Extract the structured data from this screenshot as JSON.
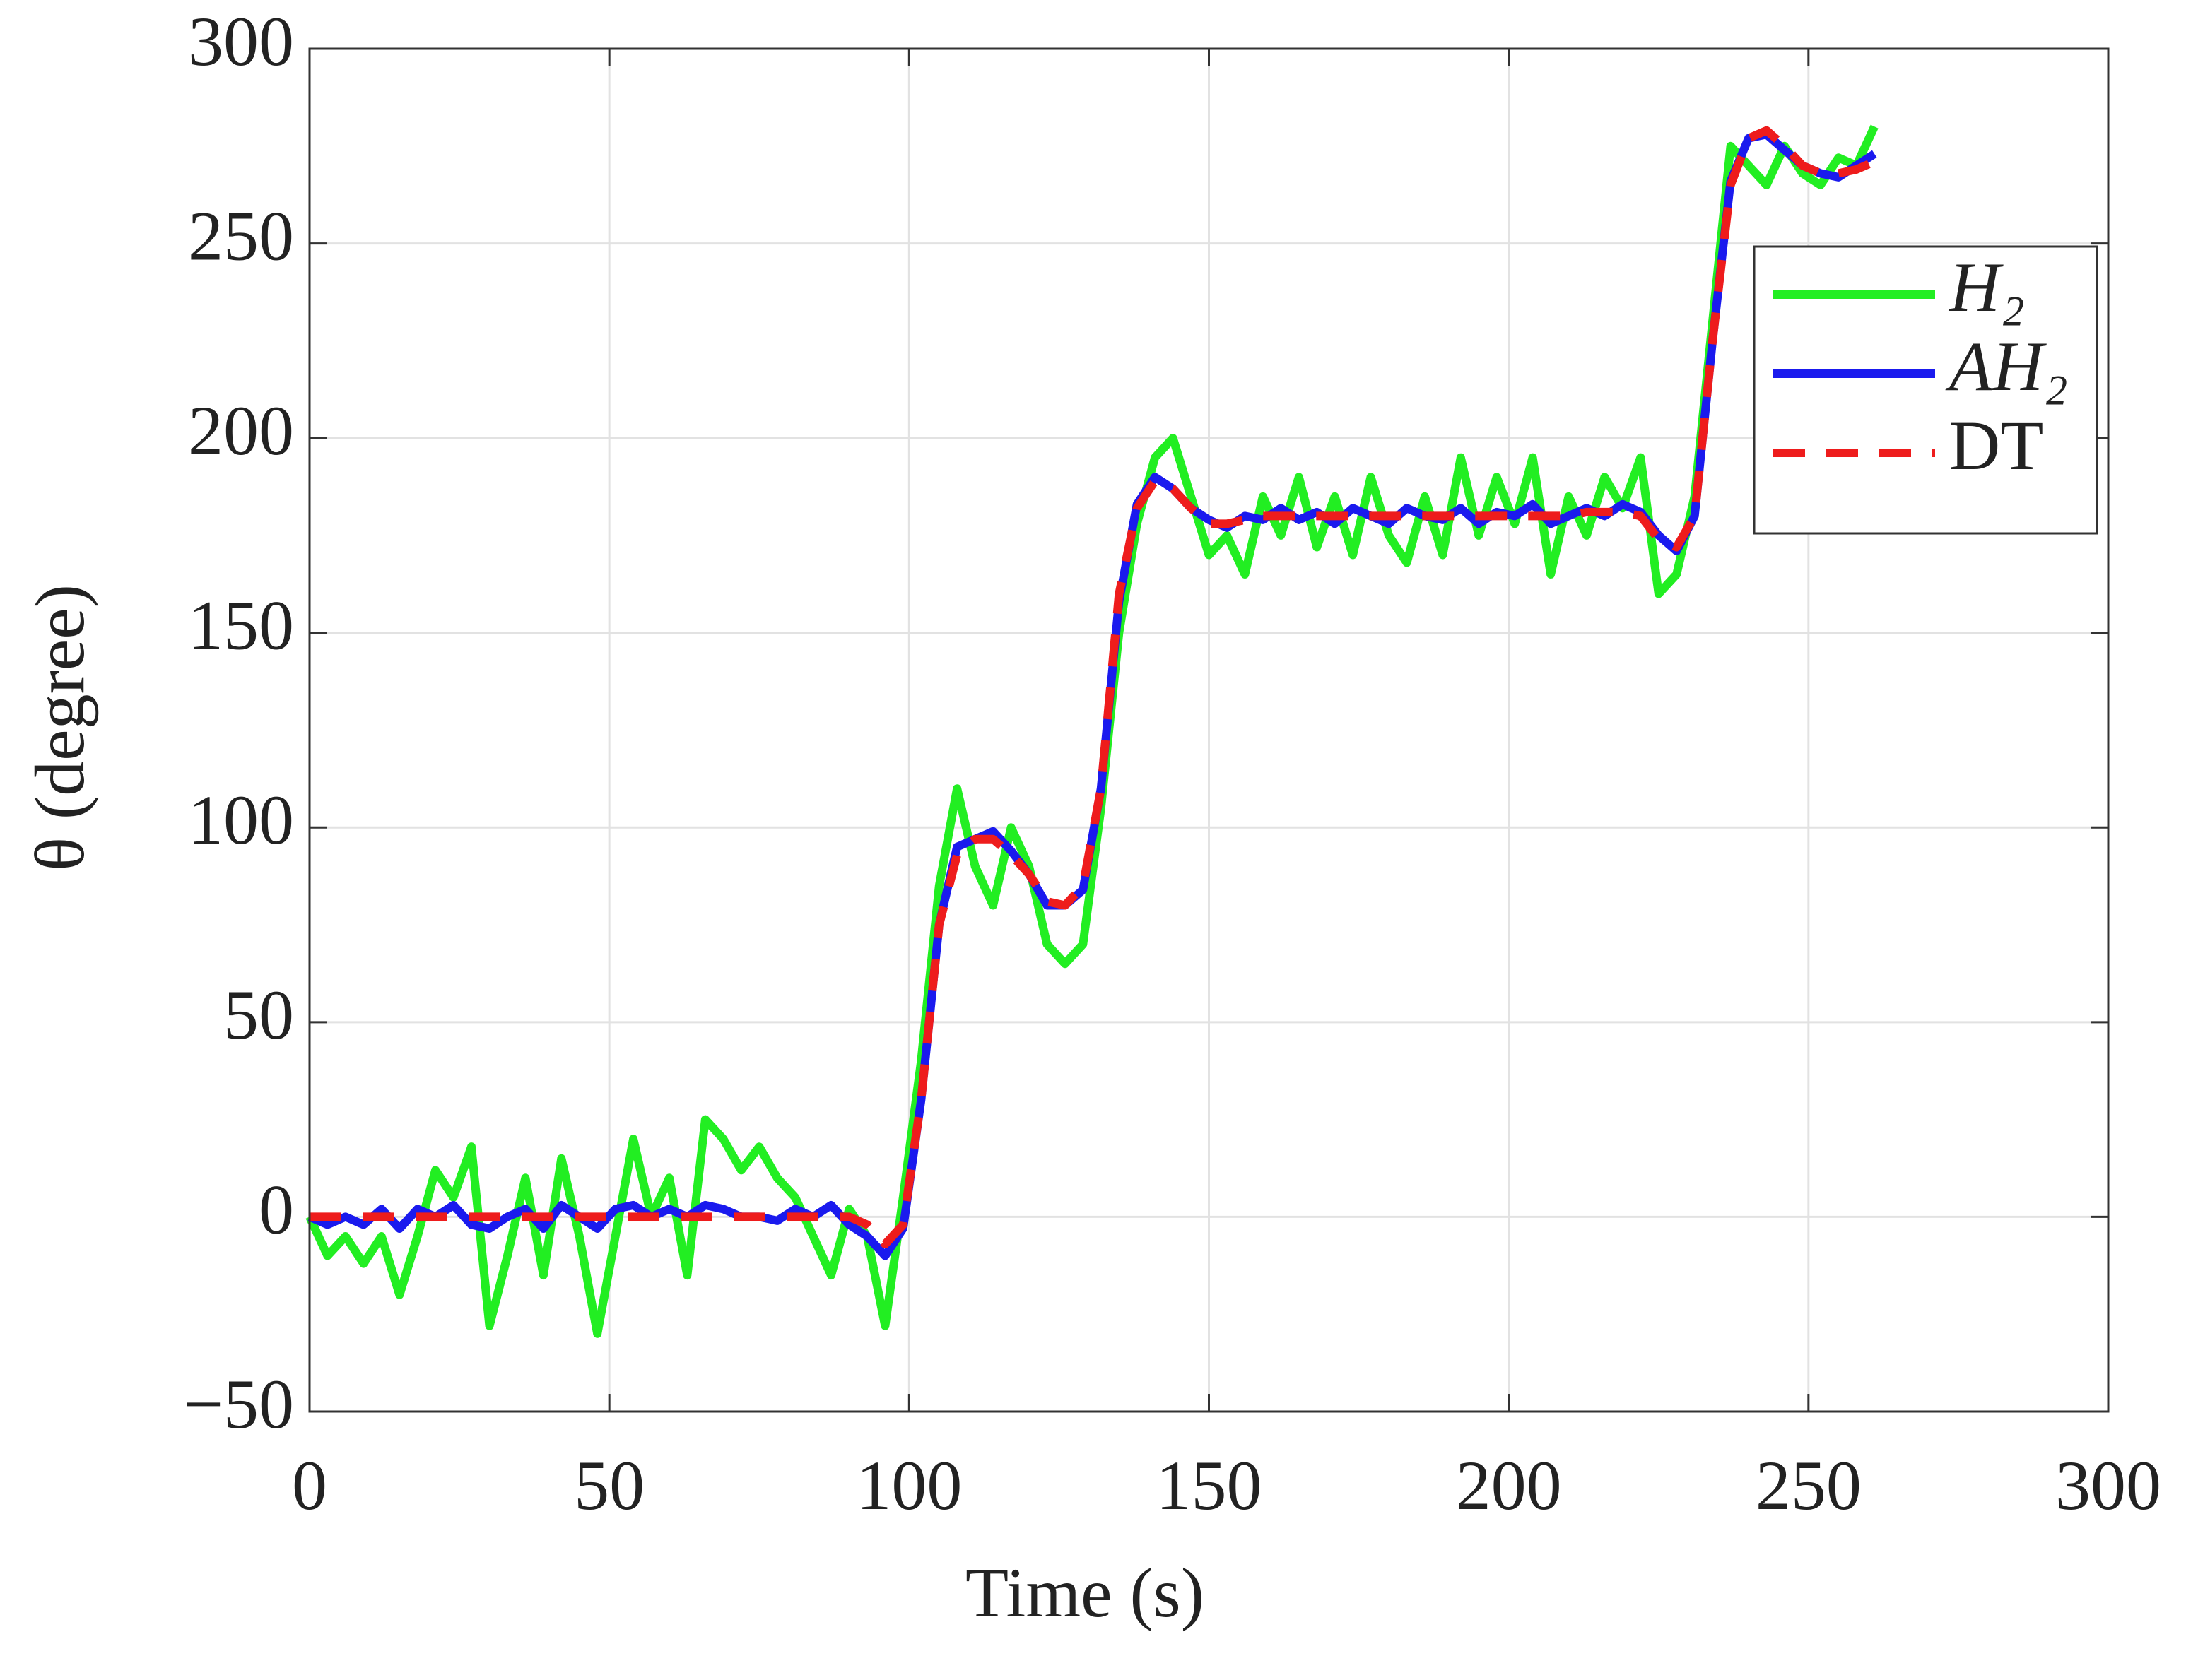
{
  "chart_data": {
    "type": "line",
    "xlabel": "Time (s)",
    "ylabel": "θ (degree)",
    "x": [
      0,
      3,
      6,
      9,
      12,
      15,
      18,
      21,
      24,
      27,
      30,
      33,
      36,
      39,
      42,
      45,
      48,
      51,
      54,
      57,
      60,
      63,
      66,
      69,
      72,
      75,
      78,
      81,
      84,
      87,
      90,
      93,
      96,
      99,
      102,
      105,
      108,
      111,
      114,
      117,
      120,
      123,
      126,
      129,
      132,
      135,
      138,
      141,
      144,
      147,
      150,
      153,
      156,
      159,
      162,
      165,
      168,
      171,
      174,
      177,
      180,
      183,
      186,
      189,
      192,
      195,
      198,
      201,
      204,
      207,
      210,
      213,
      216,
      219,
      222,
      225,
      228,
      231,
      234,
      237,
      240,
      243,
      246,
      249,
      252,
      255,
      258,
      261
    ],
    "series": [
      {
        "name": "H₂",
        "color": "#22ee22",
        "dash": false,
        "values": [
          0,
          -10,
          -5,
          -12,
          -5,
          -20,
          -5,
          12,
          5,
          18,
          -28,
          -10,
          10,
          -15,
          15,
          -5,
          -30,
          -5,
          20,
          0,
          10,
          -15,
          25,
          20,
          12,
          18,
          10,
          5,
          -5,
          -15,
          2,
          -5,
          -28,
          5,
          40,
          85,
          110,
          90,
          80,
          100,
          90,
          70,
          65,
          70,
          105,
          150,
          178,
          195,
          200,
          185,
          170,
          175,
          165,
          185,
          175,
          190,
          172,
          185,
          170,
          190,
          175,
          168,
          185,
          170,
          195,
          175,
          190,
          178,
          195,
          165,
          185,
          175,
          190,
          182,
          195,
          160,
          165,
          185,
          230,
          275,
          270,
          265,
          275,
          268,
          265,
          272,
          270,
          280
        ]
      },
      {
        "name": "AH₂",
        "color": "#1a1aee",
        "dash": false,
        "values": [
          0,
          -2,
          0,
          -2,
          2,
          -3,
          2,
          0,
          3,
          -2,
          -3,
          0,
          2,
          -3,
          3,
          0,
          -3,
          2,
          3,
          0,
          2,
          0,
          3,
          2,
          0,
          0,
          -1,
          2,
          0,
          3,
          -2,
          -5,
          -10,
          -3,
          30,
          75,
          95,
          97,
          99,
          94,
          88,
          80,
          80,
          84,
          110,
          158,
          183,
          190,
          187,
          182,
          179,
          177,
          180,
          179,
          182,
          179,
          181,
          178,
          182,
          180,
          178,
          182,
          180,
          179,
          182,
          178,
          181,
          180,
          183,
          178,
          180,
          182,
          180,
          183,
          181,
          175,
          171,
          180,
          225,
          266,
          277,
          278,
          274,
          270,
          268,
          267,
          270,
          273
        ]
      },
      {
        "name": "DT",
        "color": "#ee1c1c",
        "dash": true,
        "values": [
          0,
          0,
          0,
          0,
          0,
          0,
          0,
          0,
          0,
          0,
          0,
          0,
          0,
          0,
          0,
          0,
          0,
          0,
          0,
          0,
          0,
          0,
          0,
          0,
          0,
          0,
          0,
          0,
          0,
          0,
          0,
          -2,
          -7,
          -2,
          30,
          75,
          93,
          97,
          97,
          93,
          88,
          81,
          80,
          85,
          110,
          160,
          182,
          189,
          187,
          182,
          178,
          178,
          179,
          180,
          180,
          180,
          180,
          180,
          180,
          180,
          180,
          180,
          180,
          180,
          180,
          180,
          180,
          180,
          180,
          180,
          180,
          181,
          181,
          181,
          180,
          174,
          172,
          180,
          225,
          265,
          277,
          279,
          275,
          270,
          268,
          268,
          269,
          271
        ]
      }
    ],
    "xlim": [
      0,
      300
    ],
    "xticks": [
      0,
      50,
      100,
      150,
      200,
      250,
      300
    ],
    "ylim": [
      -50,
      300
    ],
    "yticks": [
      {
        "value": -50,
        "label": "−50"
      },
      0,
      50,
      100,
      150,
      200,
      250,
      300
    ],
    "grid": true,
    "legend": "northeast"
  }
}
